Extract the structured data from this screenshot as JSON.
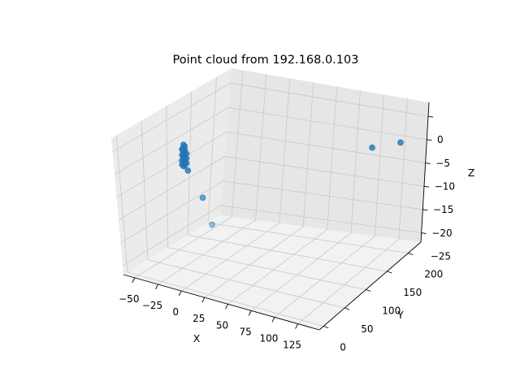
{
  "chart_data": {
    "type": "scatter",
    "projection": "3d",
    "title": "Point cloud from 192.168.0.103",
    "xlabel": "X",
    "ylabel": "Y",
    "zlabel": "Z",
    "xlim": [
      -62,
      148
    ],
    "ylim": [
      -10,
      230
    ],
    "zlim": [
      -27,
      3
    ],
    "xticks": [
      -50,
      -25,
      0,
      25,
      50,
      75,
      100,
      125
    ],
    "yticks": [
      0,
      50,
      100,
      150,
      200
    ],
    "zticks": [
      0,
      -5,
      -10,
      -15,
      -20,
      -25
    ],
    "grid": true,
    "color": "#1f77b4",
    "series": [
      {
        "points": [
          {
            "x": -42,
            "y": 95,
            "z": -4.0
          },
          {
            "x": -42,
            "y": 95,
            "z": -4.8
          },
          {
            "x": -42,
            "y": 95,
            "z": -5.6
          },
          {
            "x": -42,
            "y": 95,
            "z": -6.4
          },
          {
            "x": -42,
            "y": 95,
            "z": -7.2
          },
          {
            "x": -42,
            "y": 95,
            "z": -8.0
          },
          {
            "x": -42,
            "y": 95,
            "z": -8.6
          },
          {
            "x": -41,
            "y": 96,
            "z": -4.4
          },
          {
            "x": -41,
            "y": 96,
            "z": -5.2
          },
          {
            "x": -41,
            "y": 96,
            "z": -6.0
          },
          {
            "x": -41,
            "y": 96,
            "z": -6.8
          },
          {
            "x": -41,
            "y": 96,
            "z": -7.6
          },
          {
            "x": -41,
            "y": 96,
            "z": -8.4
          },
          {
            "x": -43,
            "y": 94,
            "z": -5.0
          },
          {
            "x": -43,
            "y": 94,
            "z": -6.2
          },
          {
            "x": -43,
            "y": 94,
            "z": -7.4
          },
          {
            "x": -43,
            "y": 94,
            "z": -8.2
          },
          {
            "x": -40,
            "y": 97,
            "z": -6.0
          },
          {
            "x": -40,
            "y": 97,
            "z": -7.0
          },
          {
            "x": -40,
            "y": 97,
            "z": -8.0
          },
          {
            "x": -38,
            "y": 96,
            "z": -9.4
          },
          {
            "x": -15,
            "y": 80,
            "z": -13.2
          },
          {
            "x": 3,
            "y": 62,
            "z": -17.0
          },
          {
            "x": 110,
            "y": 190,
            "z": -5.0
          },
          {
            "x": 131,
            "y": 208,
            "z": -4.5
          }
        ]
      }
    ]
  }
}
